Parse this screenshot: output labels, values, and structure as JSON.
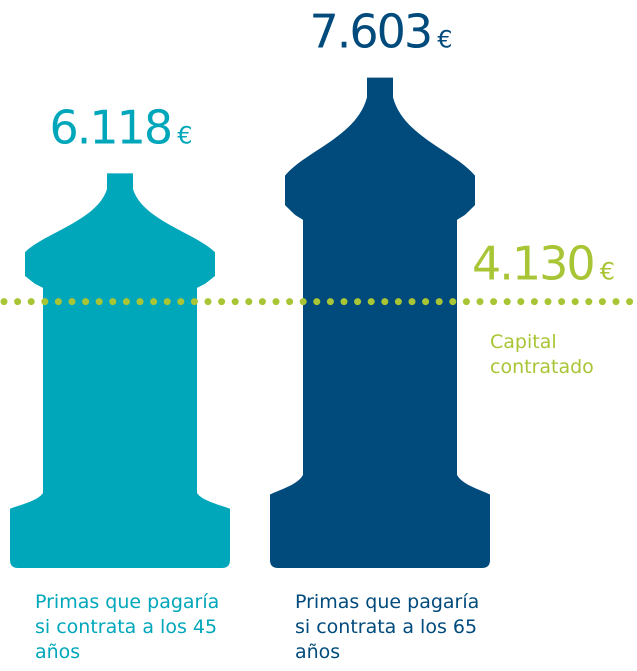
{
  "chart_data": {
    "type": "bar",
    "categories": [
      "Primas que pagaría si contrata a los 45 años",
      "Primas que pagaría si contrata a los 65 años"
    ],
    "values": [
      6118,
      7603
    ],
    "value_labels": [
      "6.118",
      "7.603"
    ],
    "currency": "€",
    "colors": [
      "#00a7bb",
      "#004a7c"
    ],
    "reference_line": {
      "value": 4130,
      "label": "4.130",
      "text": "Capital contratado",
      "color": "#a8c536"
    }
  }
}
